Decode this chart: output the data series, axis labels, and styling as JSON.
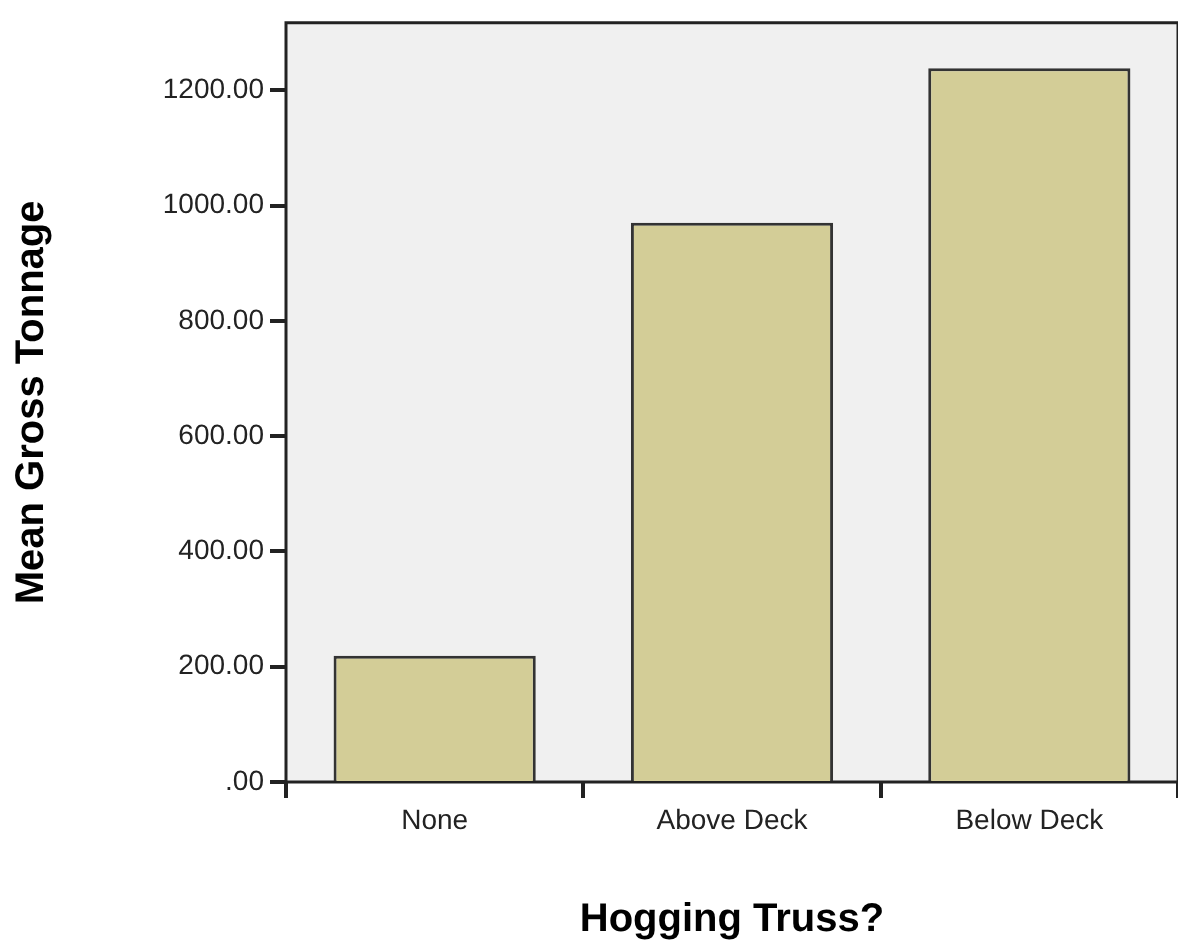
{
  "chart_data": {
    "type": "bar",
    "xlabel": "Hogging Truss?",
    "ylabel": "Mean Gross Tonnage",
    "categories": [
      "None",
      "Above Deck",
      "Below Deck"
    ],
    "values": [
      219,
      970,
      1238
    ],
    "color": "#d3cd97",
    "ylim": [
      0,
      1317
    ],
    "yticks": [
      {
        "value": 0,
        "label": ".00"
      },
      {
        "value": 200,
        "label": "200.00"
      },
      {
        "value": 400,
        "label": "400.00"
      },
      {
        "value": 600,
        "label": "600.00"
      },
      {
        "value": 800,
        "label": "800.00"
      },
      {
        "value": 1000,
        "label": "1000.00"
      },
      {
        "value": 1200,
        "label": "1200.00"
      }
    ],
    "grid": false,
    "legend": false
  }
}
